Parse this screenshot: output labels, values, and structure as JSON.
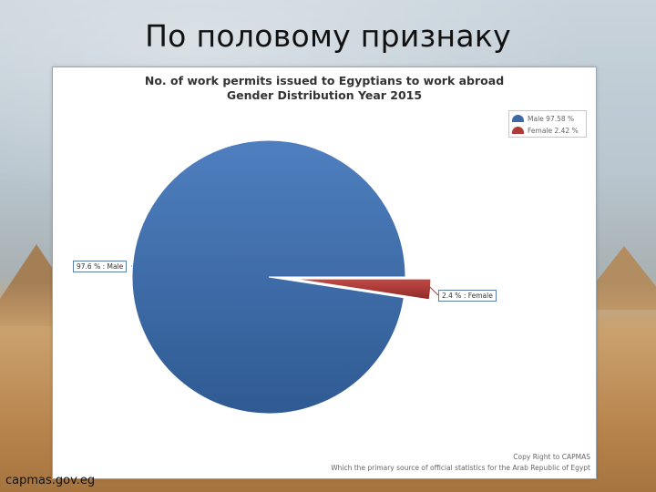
{
  "slide": {
    "title": "По половому признаку",
    "source": "capmas.gov.eg"
  },
  "chart_data": {
    "type": "pie",
    "title_line1": "No. of work permits issued to Egyptians to work abroad",
    "title_line2": "Gender Distribution Year 2015",
    "slices": [
      {
        "name": "Male",
        "value": 97.58,
        "legend": "Male  97.58 %",
        "label": "97.6 % : Male",
        "color": "#3d6aa6"
      },
      {
        "name": "Female",
        "value": 2.42,
        "legend": "Female  2.42 %",
        "label": "2.4 % : Female",
        "color": "#b03a37"
      }
    ],
    "legend_position": "top-right"
  },
  "footer": {
    "copyright": "Copy Right to CAPMAS",
    "tagline": "Which the primary source of official statistics for the Arab Republic of Egypt"
  }
}
